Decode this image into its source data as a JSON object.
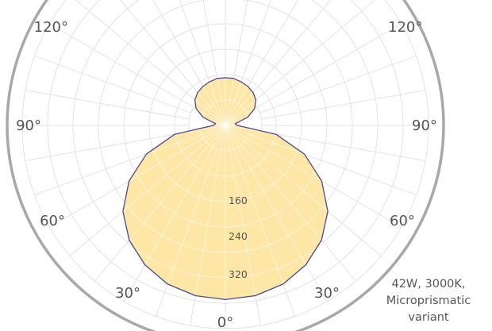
{
  "chart_data": {
    "type": "polar",
    "title": "",
    "radial_ticks": [
      160,
      240,
      320
    ],
    "radial_max": 320,
    "angle_labels": [
      {
        "text": "0°",
        "angle": 0,
        "side": "center"
      },
      {
        "text": "30°",
        "angle": 30,
        "side": "left"
      },
      {
        "text": "30°",
        "angle": 30,
        "side": "right"
      },
      {
        "text": "60°",
        "angle": 60,
        "side": "left"
      },
      {
        "text": "60°",
        "angle": 60,
        "side": "right"
      },
      {
        "text": "90°",
        "angle": 90,
        "side": "left"
      },
      {
        "text": "90°",
        "angle": 90,
        "side": "right"
      },
      {
        "text": "120°",
        "angle": 120,
        "side": "left"
      },
      {
        "text": "120°",
        "angle": 120,
        "side": "right"
      }
    ],
    "series": [
      {
        "name": "",
        "fill": "#fde6a6",
        "stroke": "#4a4a8a",
        "angles": [
          0,
          10,
          20,
          30,
          40,
          50,
          60,
          70,
          80,
          90,
          100,
          110,
          120,
          130,
          140,
          150,
          160,
          170,
          180
        ],
        "values": [
          263,
          261,
          255,
          243,
          226,
          202,
          168,
          127,
          78,
          18,
          15,
          36,
          51,
          60,
          65,
          68,
          70,
          72,
          72
        ]
      }
    ],
    "legend": {
      "position": "bottom-right",
      "lines": [
        "42W, 3000K,",
        "Microprismatic",
        "variant"
      ]
    },
    "colors": {
      "grid": "#e3e3e3",
      "outer_ring": "#a8a8a8",
      "text": "#555555"
    }
  }
}
